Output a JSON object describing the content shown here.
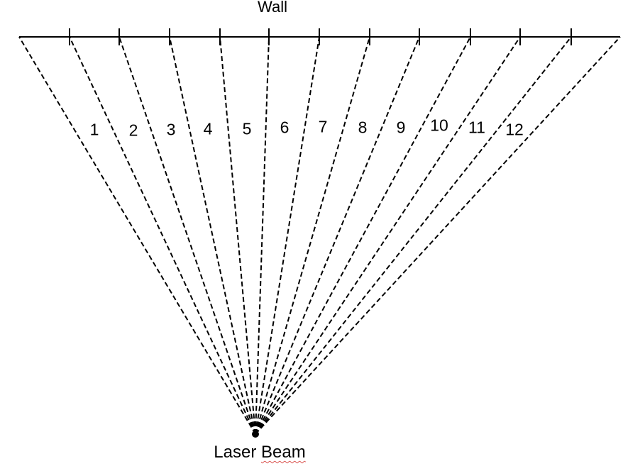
{
  "diagram": {
    "wall_label": "Wall",
    "source_label_first": "Laser",
    "source_label_second": "Beam",
    "zone_labels": [
      "1",
      "2",
      "3",
      "4",
      "5",
      "6",
      "7",
      "8",
      "9",
      "10",
      "11",
      "12"
    ],
    "line_color": "#000000",
    "spellcheck_underline_color": "#d9534f"
  }
}
